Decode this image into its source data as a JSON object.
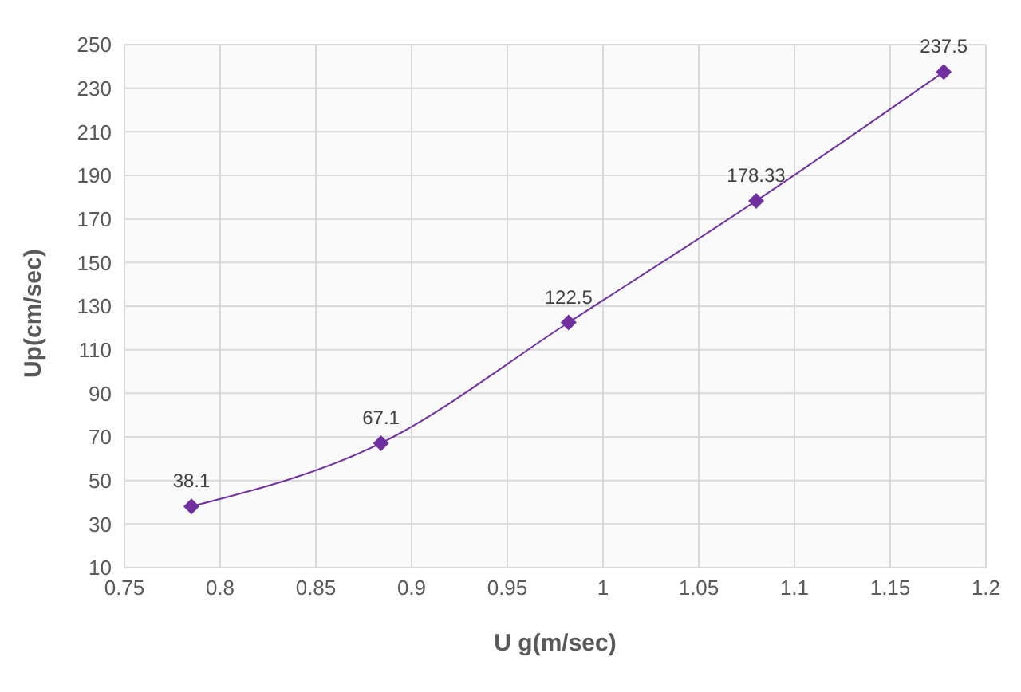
{
  "chart_data": {
    "type": "line",
    "xlabel": "U g(m/sec)",
    "ylabel": "Up(cm/sec)",
    "x": [
      0.785,
      0.884,
      0.982,
      1.08,
      1.178
    ],
    "series": [
      {
        "color": "#7030a0",
        "values": [
          38.1,
          67.1,
          122.5,
          178.33,
          237.5
        ],
        "value_labels": [
          "38.1",
          "67.1",
          "122.5",
          "178.33",
          "237.5"
        ]
      }
    ],
    "xlim": [
      0.75,
      1.2
    ],
    "xticks": [
      0.75,
      0.8,
      0.85,
      0.9,
      0.95,
      1,
      1.05,
      1.1,
      1.15,
      1.2
    ],
    "ylim": [
      10,
      250
    ],
    "yticks": [
      10,
      30,
      50,
      70,
      90,
      110,
      130,
      150,
      170,
      190,
      210,
      230,
      250
    ],
    "grid": true,
    "legend": false,
    "marker": "diamond",
    "line_style": "solid"
  }
}
